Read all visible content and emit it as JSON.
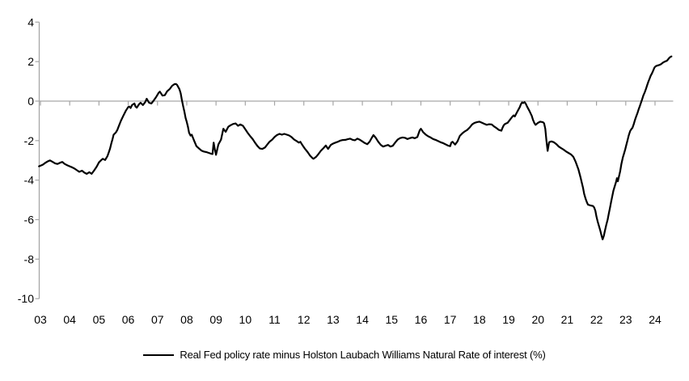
{
  "chart_data": {
    "type": "line",
    "title": "",
    "legend": "Real Fed policy rate minus Holston Laubach Williams Natural Rate of interest (%)",
    "xlabel": "",
    "ylabel": "",
    "x_tick_labels": [
      "03",
      "04",
      "05",
      "06",
      "07",
      "08",
      "09",
      "10",
      "11",
      "12",
      "13",
      "14",
      "15",
      "16",
      "17",
      "18",
      "19",
      "20",
      "21",
      "22",
      "23",
      "24"
    ],
    "x_tick_years": [
      2003,
      2004,
      2005,
      2006,
      2007,
      2008,
      2009,
      2010,
      2011,
      2012,
      2013,
      2014,
      2015,
      2016,
      2017,
      2018,
      2019,
      2020,
      2021,
      2022,
      2023,
      2024
    ],
    "y_ticks": [
      4,
      2,
      0,
      -2,
      -4,
      -6,
      -8,
      -10
    ],
    "ylim": [
      -10,
      4
    ],
    "xlim": [
      2002.95,
      2024.62
    ],
    "grid": "zero-line-only",
    "legend_position": "bottom-center",
    "line_color": "#000000",
    "axis_color": "#a6a6a6",
    "points": [
      [
        2002.95,
        -3.3
      ],
      [
        2003.08,
        -3.22
      ],
      [
        2003.17,
        -3.12
      ],
      [
        2003.25,
        -3.05
      ],
      [
        2003.33,
        -3.0
      ],
      [
        2003.42,
        -3.08
      ],
      [
        2003.5,
        -3.15
      ],
      [
        2003.58,
        -3.18
      ],
      [
        2003.67,
        -3.12
      ],
      [
        2003.75,
        -3.08
      ],
      [
        2003.83,
        -3.18
      ],
      [
        2003.92,
        -3.25
      ],
      [
        2004.0,
        -3.3
      ],
      [
        2004.08,
        -3.35
      ],
      [
        2004.17,
        -3.42
      ],
      [
        2004.25,
        -3.5
      ],
      [
        2004.33,
        -3.58
      ],
      [
        2004.42,
        -3.52
      ],
      [
        2004.5,
        -3.62
      ],
      [
        2004.58,
        -3.68
      ],
      [
        2004.67,
        -3.6
      ],
      [
        2004.75,
        -3.68
      ],
      [
        2004.83,
        -3.52
      ],
      [
        2004.92,
        -3.32
      ],
      [
        2005.0,
        -3.1
      ],
      [
        2005.08,
        -2.98
      ],
      [
        2005.13,
        -2.92
      ],
      [
        2005.21,
        -2.98
      ],
      [
        2005.29,
        -2.78
      ],
      [
        2005.33,
        -2.62
      ],
      [
        2005.38,
        -2.4
      ],
      [
        2005.42,
        -2.15
      ],
      [
        2005.46,
        -1.95
      ],
      [
        2005.5,
        -1.7
      ],
      [
        2005.58,
        -1.58
      ],
      [
        2005.63,
        -1.45
      ],
      [
        2005.67,
        -1.3
      ],
      [
        2005.75,
        -1.0
      ],
      [
        2005.83,
        -0.75
      ],
      [
        2005.92,
        -0.48
      ],
      [
        2006.0,
        -0.3
      ],
      [
        2006.04,
        -0.28
      ],
      [
        2006.08,
        -0.35
      ],
      [
        2006.13,
        -0.2
      ],
      [
        2006.21,
        -0.12
      ],
      [
        2006.25,
        -0.28
      ],
      [
        2006.29,
        -0.33
      ],
      [
        2006.38,
        -0.14
      ],
      [
        2006.42,
        -0.08
      ],
      [
        2006.5,
        -0.2
      ],
      [
        2006.58,
        -0.05
      ],
      [
        2006.63,
        0.12
      ],
      [
        2006.71,
        -0.08
      ],
      [
        2006.79,
        -0.12
      ],
      [
        2006.88,
        0.05
      ],
      [
        2006.96,
        0.22
      ],
      [
        2007.04,
        0.42
      ],
      [
        2007.08,
        0.48
      ],
      [
        2007.17,
        0.28
      ],
      [
        2007.25,
        0.3
      ],
      [
        2007.33,
        0.5
      ],
      [
        2007.42,
        0.62
      ],
      [
        2007.5,
        0.78
      ],
      [
        2007.58,
        0.86
      ],
      [
        2007.63,
        0.87
      ],
      [
        2007.67,
        0.82
      ],
      [
        2007.75,
        0.6
      ],
      [
        2007.79,
        0.4
      ],
      [
        2007.83,
        0.08
      ],
      [
        2007.88,
        -0.28
      ],
      [
        2007.92,
        -0.55
      ],
      [
        2007.96,
        -0.85
      ],
      [
        2008.0,
        -1.05
      ],
      [
        2008.04,
        -1.3
      ],
      [
        2008.08,
        -1.6
      ],
      [
        2008.13,
        -1.75
      ],
      [
        2008.17,
        -1.7
      ],
      [
        2008.25,
        -2.0
      ],
      [
        2008.33,
        -2.28
      ],
      [
        2008.42,
        -2.4
      ],
      [
        2008.5,
        -2.5
      ],
      [
        2008.58,
        -2.55
      ],
      [
        2008.67,
        -2.58
      ],
      [
        2008.75,
        -2.62
      ],
      [
        2008.83,
        -2.66
      ],
      [
        2008.88,
        -2.68
      ],
      [
        2008.92,
        -2.1
      ],
      [
        2008.96,
        -2.45
      ],
      [
        2009.0,
        -2.72
      ],
      [
        2009.08,
        -2.2
      ],
      [
        2009.17,
        -1.95
      ],
      [
        2009.25,
        -1.4
      ],
      [
        2009.29,
        -1.48
      ],
      [
        2009.33,
        -1.55
      ],
      [
        2009.42,
        -1.3
      ],
      [
        2009.5,
        -1.22
      ],
      [
        2009.58,
        -1.16
      ],
      [
        2009.67,
        -1.13
      ],
      [
        2009.75,
        -1.25
      ],
      [
        2009.83,
        -1.18
      ],
      [
        2009.92,
        -1.25
      ],
      [
        2010.0,
        -1.42
      ],
      [
        2010.08,
        -1.6
      ],
      [
        2010.17,
        -1.78
      ],
      [
        2010.25,
        -1.92
      ],
      [
        2010.33,
        -2.1
      ],
      [
        2010.42,
        -2.28
      ],
      [
        2010.5,
        -2.4
      ],
      [
        2010.58,
        -2.42
      ],
      [
        2010.67,
        -2.35
      ],
      [
        2010.75,
        -2.2
      ],
      [
        2010.83,
        -2.05
      ],
      [
        2010.92,
        -1.95
      ],
      [
        2011.0,
        -1.82
      ],
      [
        2011.08,
        -1.72
      ],
      [
        2011.17,
        -1.66
      ],
      [
        2011.25,
        -1.7
      ],
      [
        2011.33,
        -1.66
      ],
      [
        2011.42,
        -1.7
      ],
      [
        2011.5,
        -1.74
      ],
      [
        2011.58,
        -1.82
      ],
      [
        2011.67,
        -1.95
      ],
      [
        2011.75,
        -2.02
      ],
      [
        2011.83,
        -2.1
      ],
      [
        2011.88,
        -2.06
      ],
      [
        2011.96,
        -2.25
      ],
      [
        2012.04,
        -2.42
      ],
      [
        2012.13,
        -2.58
      ],
      [
        2012.21,
        -2.75
      ],
      [
        2012.29,
        -2.88
      ],
      [
        2012.33,
        -2.92
      ],
      [
        2012.42,
        -2.82
      ],
      [
        2012.5,
        -2.68
      ],
      [
        2012.58,
        -2.52
      ],
      [
        2012.67,
        -2.38
      ],
      [
        2012.75,
        -2.25
      ],
      [
        2012.83,
        -2.42
      ],
      [
        2012.92,
        -2.22
      ],
      [
        2013.0,
        -2.15
      ],
      [
        2013.08,
        -2.1
      ],
      [
        2013.17,
        -2.05
      ],
      [
        2013.25,
        -2.0
      ],
      [
        2013.33,
        -1.97
      ],
      [
        2013.42,
        -1.96
      ],
      [
        2013.5,
        -1.93
      ],
      [
        2013.58,
        -1.9
      ],
      [
        2013.67,
        -1.96
      ],
      [
        2013.75,
        -1.98
      ],
      [
        2013.83,
        -1.9
      ],
      [
        2013.92,
        -1.96
      ],
      [
        2014.0,
        -2.04
      ],
      [
        2014.08,
        -2.12
      ],
      [
        2014.17,
        -2.18
      ],
      [
        2014.25,
        -2.05
      ],
      [
        2014.33,
        -1.84
      ],
      [
        2014.38,
        -1.72
      ],
      [
        2014.46,
        -1.86
      ],
      [
        2014.54,
        -2.05
      ],
      [
        2014.63,
        -2.22
      ],
      [
        2014.71,
        -2.3
      ],
      [
        2014.79,
        -2.26
      ],
      [
        2014.88,
        -2.22
      ],
      [
        2014.96,
        -2.3
      ],
      [
        2015.04,
        -2.26
      ],
      [
        2015.13,
        -2.08
      ],
      [
        2015.21,
        -1.94
      ],
      [
        2015.29,
        -1.87
      ],
      [
        2015.38,
        -1.84
      ],
      [
        2015.46,
        -1.86
      ],
      [
        2015.54,
        -1.92
      ],
      [
        2015.63,
        -1.87
      ],
      [
        2015.71,
        -1.84
      ],
      [
        2015.79,
        -1.88
      ],
      [
        2015.88,
        -1.82
      ],
      [
        2015.96,
        -1.48
      ],
      [
        2016.0,
        -1.4
      ],
      [
        2016.08,
        -1.58
      ],
      [
        2016.17,
        -1.7
      ],
      [
        2016.25,
        -1.78
      ],
      [
        2016.33,
        -1.84
      ],
      [
        2016.42,
        -1.92
      ],
      [
        2016.5,
        -1.96
      ],
      [
        2016.58,
        -2.02
      ],
      [
        2016.67,
        -2.08
      ],
      [
        2016.75,
        -2.12
      ],
      [
        2016.83,
        -2.18
      ],
      [
        2016.92,
        -2.25
      ],
      [
        2017.0,
        -2.28
      ],
      [
        2017.04,
        -2.1
      ],
      [
        2017.08,
        -2.06
      ],
      [
        2017.17,
        -2.2
      ],
      [
        2017.25,
        -2.04
      ],
      [
        2017.33,
        -1.76
      ],
      [
        2017.42,
        -1.62
      ],
      [
        2017.5,
        -1.53
      ],
      [
        2017.58,
        -1.46
      ],
      [
        2017.67,
        -1.33
      ],
      [
        2017.75,
        -1.18
      ],
      [
        2017.83,
        -1.1
      ],
      [
        2017.92,
        -1.06
      ],
      [
        2018.0,
        -1.04
      ],
      [
        2018.08,
        -1.09
      ],
      [
        2018.17,
        -1.15
      ],
      [
        2018.25,
        -1.2
      ],
      [
        2018.33,
        -1.17
      ],
      [
        2018.42,
        -1.18
      ],
      [
        2018.5,
        -1.28
      ],
      [
        2018.58,
        -1.36
      ],
      [
        2018.67,
        -1.46
      ],
      [
        2018.75,
        -1.5
      ],
      [
        2018.79,
        -1.35
      ],
      [
        2018.83,
        -1.22
      ],
      [
        2018.88,
        -1.15
      ],
      [
        2018.96,
        -1.1
      ],
      [
        2019.04,
        -0.95
      ],
      [
        2019.13,
        -0.78
      ],
      [
        2019.17,
        -0.72
      ],
      [
        2019.21,
        -0.78
      ],
      [
        2019.29,
        -0.55
      ],
      [
        2019.38,
        -0.3
      ],
      [
        2019.42,
        -0.15
      ],
      [
        2019.46,
        -0.06
      ],
      [
        2019.5,
        -0.1
      ],
      [
        2019.54,
        -0.05
      ],
      [
        2019.58,
        -0.12
      ],
      [
        2019.63,
        -0.28
      ],
      [
        2019.71,
        -0.5
      ],
      [
        2019.79,
        -0.75
      ],
      [
        2019.83,
        -0.95
      ],
      [
        2019.88,
        -1.12
      ],
      [
        2019.92,
        -1.2
      ],
      [
        2020.0,
        -1.1
      ],
      [
        2020.08,
        -1.04
      ],
      [
        2020.17,
        -1.07
      ],
      [
        2020.21,
        -1.12
      ],
      [
        2020.25,
        -1.4
      ],
      [
        2020.29,
        -2.0
      ],
      [
        2020.33,
        -2.52
      ],
      [
        2020.38,
        -2.08
      ],
      [
        2020.46,
        -2.04
      ],
      [
        2020.54,
        -2.08
      ],
      [
        2020.63,
        -2.18
      ],
      [
        2020.71,
        -2.3
      ],
      [
        2020.79,
        -2.38
      ],
      [
        2020.88,
        -2.46
      ],
      [
        2020.96,
        -2.55
      ],
      [
        2021.04,
        -2.62
      ],
      [
        2021.13,
        -2.7
      ],
      [
        2021.21,
        -2.82
      ],
      [
        2021.29,
        -3.08
      ],
      [
        2021.38,
        -3.45
      ],
      [
        2021.46,
        -3.9
      ],
      [
        2021.54,
        -4.4
      ],
      [
        2021.58,
        -4.7
      ],
      [
        2021.63,
        -4.95
      ],
      [
        2021.67,
        -5.12
      ],
      [
        2021.71,
        -5.24
      ],
      [
        2021.79,
        -5.28
      ],
      [
        2021.88,
        -5.31
      ],
      [
        2021.92,
        -5.38
      ],
      [
        2021.96,
        -5.55
      ],
      [
        2022.0,
        -5.85
      ],
      [
        2022.04,
        -6.1
      ],
      [
        2022.08,
        -6.3
      ],
      [
        2022.13,
        -6.55
      ],
      [
        2022.17,
        -6.8
      ],
      [
        2022.21,
        -7.0
      ],
      [
        2022.25,
        -6.82
      ],
      [
        2022.29,
        -6.55
      ],
      [
        2022.33,
        -6.28
      ],
      [
        2022.38,
        -6.0
      ],
      [
        2022.42,
        -5.7
      ],
      [
        2022.46,
        -5.4
      ],
      [
        2022.5,
        -5.1
      ],
      [
        2022.54,
        -4.8
      ],
      [
        2022.58,
        -4.52
      ],
      [
        2022.63,
        -4.28
      ],
      [
        2022.67,
        -4.08
      ],
      [
        2022.7,
        -3.9
      ],
      [
        2022.73,
        -4.06
      ],
      [
        2022.77,
        -3.8
      ],
      [
        2022.81,
        -3.55
      ],
      [
        2022.85,
        -3.18
      ],
      [
        2022.9,
        -2.85
      ],
      [
        2022.94,
        -2.66
      ],
      [
        2022.98,
        -2.45
      ],
      [
        2023.02,
        -2.22
      ],
      [
        2023.06,
        -1.98
      ],
      [
        2023.1,
        -1.75
      ],
      [
        2023.15,
        -1.52
      ],
      [
        2023.19,
        -1.42
      ],
      [
        2023.23,
        -1.35
      ],
      [
        2023.27,
        -1.18
      ],
      [
        2023.31,
        -0.98
      ],
      [
        2023.35,
        -0.8
      ],
      [
        2023.4,
        -0.6
      ],
      [
        2023.44,
        -0.42
      ],
      [
        2023.48,
        -0.25
      ],
      [
        2023.52,
        -0.08
      ],
      [
        2023.56,
        0.1
      ],
      [
        2023.6,
        0.28
      ],
      [
        2023.65,
        0.45
      ],
      [
        2023.69,
        0.62
      ],
      [
        2023.73,
        0.8
      ],
      [
        2023.77,
        0.98
      ],
      [
        2023.81,
        1.12
      ],
      [
        2023.85,
        1.28
      ],
      [
        2023.9,
        1.42
      ],
      [
        2023.94,
        1.55
      ],
      [
        2023.98,
        1.7
      ],
      [
        2024.02,
        1.76
      ],
      [
        2024.06,
        1.79
      ],
      [
        2024.1,
        1.81
      ],
      [
        2024.15,
        1.83
      ],
      [
        2024.19,
        1.86
      ],
      [
        2024.23,
        1.9
      ],
      [
        2024.27,
        1.95
      ],
      [
        2024.31,
        1.98
      ],
      [
        2024.35,
        2.01
      ],
      [
        2024.4,
        2.04
      ],
      [
        2024.44,
        2.1
      ],
      [
        2024.48,
        2.18
      ],
      [
        2024.52,
        2.23
      ],
      [
        2024.56,
        2.26
      ]
    ]
  }
}
